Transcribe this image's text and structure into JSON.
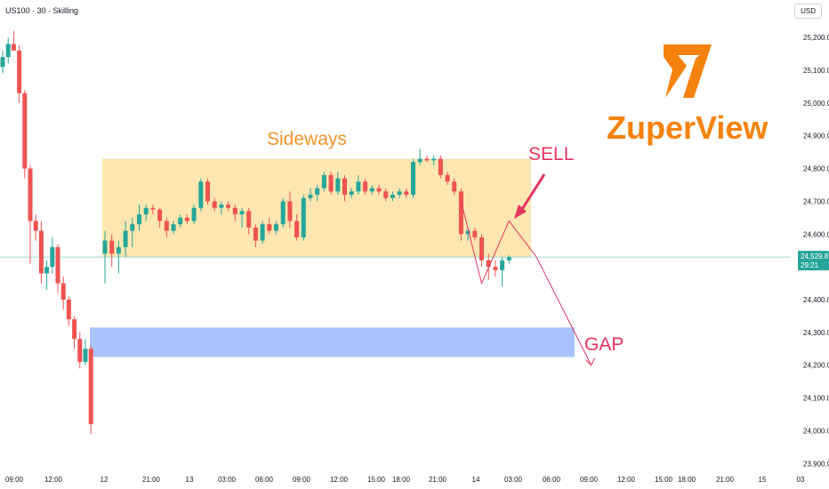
{
  "header": {
    "symbol": "US100 · 30 · Skilling",
    "currency": "USD"
  },
  "price_tag": {
    "price": "24,529.8",
    "countdown": "29:21"
  },
  "annotations": {
    "sideways": "Sideways",
    "sell": "SELL",
    "gap": "GAP"
  },
  "logo": {
    "text": "ZuperView"
  },
  "colors": {
    "up": "#26a69a",
    "down": "#ef5350",
    "sideways_zone": "#fde6b0",
    "gap_zone": "#a9c3ff",
    "accent": "#e6335f",
    "logo": "#f5820d",
    "sideways_text": "#f0942a"
  },
  "chart_data": {
    "type": "candlestick",
    "y_axis_labels": [
      "25,200.0",
      "25,100.0",
      "25,000.0",
      "24,900.0",
      "24,800.0",
      "24,700.0",
      "24,600.0",
      "24,400.0",
      "24,300.0",
      "24,200.0",
      "24,100.0",
      "24,000.0",
      "23,900.0"
    ],
    "y_axis_values": [
      25200,
      25100,
      25000,
      24900,
      24800,
      24700,
      24600,
      24400,
      24300,
      24200,
      24100,
      24000,
      23900
    ],
    "x_axis_labels": [
      "09:00",
      "12:00",
      "12",
      "21:00",
      "13",
      "03:00",
      "06:00",
      "09:00",
      "12:00",
      "15:00",
      "18:00",
      "21:00",
      "14",
      "03:00",
      "06:00",
      "09:00",
      "12:00",
      "15:00",
      "18:00",
      "21:00",
      "15",
      "03"
    ],
    "ylim": [
      23890,
      25260
    ],
    "last_price": 24529.8,
    "sideways_range": [
      24530,
      24830
    ],
    "gap_range": [
      24225,
      24315
    ],
    "candles": [
      {
        "o": 25110,
        "h": 25160,
        "l": 25090,
        "c": 25140
      },
      {
        "o": 25140,
        "h": 25200,
        "l": 25120,
        "c": 25180
      },
      {
        "o": 25180,
        "h": 25220,
        "l": 25160,
        "c": 25160
      },
      {
        "o": 25160,
        "h": 25175,
        "l": 25000,
        "c": 25030
      },
      {
        "o": 25030,
        "h": 25040,
        "l": 24770,
        "c": 24800
      },
      {
        "o": 24800,
        "h": 24810,
        "l": 24510,
        "c": 24640
      },
      {
        "o": 24640,
        "h": 24660,
        "l": 24580,
        "c": 24610
      },
      {
        "o": 24610,
        "h": 24640,
        "l": 24450,
        "c": 24480
      },
      {
        "o": 24480,
        "h": 24520,
        "l": 24430,
        "c": 24500
      },
      {
        "o": 24500,
        "h": 24590,
        "l": 24480,
        "c": 24560
      },
      {
        "o": 24560,
        "h": 24570,
        "l": 24420,
        "c": 24450
      },
      {
        "o": 24450,
        "h": 24470,
        "l": 24370,
        "c": 24400
      },
      {
        "o": 24400,
        "h": 24410,
        "l": 24320,
        "c": 24340
      },
      {
        "o": 24340,
        "h": 24350,
        "l": 24250,
        "c": 24280
      },
      {
        "o": 24280,
        "h": 24300,
        "l": 24190,
        "c": 24210
      },
      {
        "o": 24210,
        "h": 24280,
        "l": 24200,
        "c": 24250
      },
      {
        "o": 24250,
        "h": 24260,
        "l": 23990,
        "c": 24020
      },
      {
        "o": 24540,
        "h": 24610,
        "l": 24450,
        "c": 24580
      },
      {
        "o": 24580,
        "h": 24600,
        "l": 24500,
        "c": 24540
      },
      {
        "o": 24540,
        "h": 24580,
        "l": 24480,
        "c": 24560
      },
      {
        "o": 24560,
        "h": 24640,
        "l": 24530,
        "c": 24610
      },
      {
        "o": 24610,
        "h": 24650,
        "l": 24560,
        "c": 24630
      },
      {
        "o": 24630,
        "h": 24690,
        "l": 24610,
        "c": 24660
      },
      {
        "o": 24660,
        "h": 24690,
        "l": 24640,
        "c": 24680
      },
      {
        "o": 24680,
        "h": 24690,
        "l": 24660,
        "c": 24675
      },
      {
        "o": 24675,
        "h": 24680,
        "l": 24620,
        "c": 24640
      },
      {
        "o": 24640,
        "h": 24650,
        "l": 24590,
        "c": 24610
      },
      {
        "o": 24610,
        "h": 24640,
        "l": 24600,
        "c": 24630
      },
      {
        "o": 24630,
        "h": 24660,
        "l": 24620,
        "c": 24650
      },
      {
        "o": 24650,
        "h": 24660,
        "l": 24630,
        "c": 24640
      },
      {
        "o": 24640,
        "h": 24690,
        "l": 24630,
        "c": 24680
      },
      {
        "o": 24680,
        "h": 24770,
        "l": 24670,
        "c": 24760
      },
      {
        "o": 24760,
        "h": 24770,
        "l": 24690,
        "c": 24700
      },
      {
        "o": 24700,
        "h": 24710,
        "l": 24670,
        "c": 24680
      },
      {
        "o": 24680,
        "h": 24700,
        "l": 24660,
        "c": 24690
      },
      {
        "o": 24690,
        "h": 24700,
        "l": 24670,
        "c": 24680
      },
      {
        "o": 24680,
        "h": 24690,
        "l": 24640,
        "c": 24660
      },
      {
        "o": 24660,
        "h": 24680,
        "l": 24620,
        "c": 24670
      },
      {
        "o": 24670,
        "h": 24680,
        "l": 24600,
        "c": 24620
      },
      {
        "o": 24620,
        "h": 24630,
        "l": 24560,
        "c": 24580
      },
      {
        "o": 24580,
        "h": 24640,
        "l": 24570,
        "c": 24630
      },
      {
        "o": 24630,
        "h": 24650,
        "l": 24600,
        "c": 24610
      },
      {
        "o": 24610,
        "h": 24640,
        "l": 24600,
        "c": 24630
      },
      {
        "o": 24630,
        "h": 24710,
        "l": 24620,
        "c": 24700
      },
      {
        "o": 24700,
        "h": 24730,
        "l": 24620,
        "c": 24640
      },
      {
        "o": 24640,
        "h": 24660,
        "l": 24580,
        "c": 24590
      },
      {
        "o": 24590,
        "h": 24720,
        "l": 24580,
        "c": 24710
      },
      {
        "o": 24710,
        "h": 24740,
        "l": 24700,
        "c": 24720
      },
      {
        "o": 24720,
        "h": 24750,
        "l": 24700,
        "c": 24740
      },
      {
        "o": 24740,
        "h": 24790,
        "l": 24730,
        "c": 24780
      },
      {
        "o": 24780,
        "h": 24790,
        "l": 24720,
        "c": 24730
      },
      {
        "o": 24730,
        "h": 24790,
        "l": 24720,
        "c": 24770
      },
      {
        "o": 24770,
        "h": 24780,
        "l": 24700,
        "c": 24720
      },
      {
        "o": 24720,
        "h": 24740,
        "l": 24710,
        "c": 24730
      },
      {
        "o": 24730,
        "h": 24780,
        "l": 24720,
        "c": 24760
      },
      {
        "o": 24760,
        "h": 24770,
        "l": 24720,
        "c": 24730
      },
      {
        "o": 24730,
        "h": 24750,
        "l": 24720,
        "c": 24740
      },
      {
        "o": 24740,
        "h": 24750,
        "l": 24720,
        "c": 24730
      },
      {
        "o": 24730,
        "h": 24740,
        "l": 24700,
        "c": 24710
      },
      {
        "o": 24710,
        "h": 24730,
        "l": 24700,
        "c": 24720
      },
      {
        "o": 24720,
        "h": 24740,
        "l": 24710,
        "c": 24730
      },
      {
        "o": 24730,
        "h": 24740,
        "l": 24710,
        "c": 24720
      },
      {
        "o": 24720,
        "h": 24830,
        "l": 24710,
        "c": 24820
      },
      {
        "o": 24820,
        "h": 24860,
        "l": 24810,
        "c": 24830
      },
      {
        "o": 24830,
        "h": 24840,
        "l": 24820,
        "c": 24825
      },
      {
        "o": 24825,
        "h": 24840,
        "l": 24810,
        "c": 24830
      },
      {
        "o": 24830,
        "h": 24840,
        "l": 24770,
        "c": 24780
      },
      {
        "o": 24780,
        "h": 24790,
        "l": 24750,
        "c": 24760
      },
      {
        "o": 24760,
        "h": 24770,
        "l": 24720,
        "c": 24730
      },
      {
        "o": 24730,
        "h": 24740,
        "l": 24580,
        "c": 24600
      },
      {
        "o": 24600,
        "h": 24620,
        "l": 24580,
        "c": 24610
      },
      {
        "o": 24610,
        "h": 24620,
        "l": 24580,
        "c": 24590
      },
      {
        "o": 24590,
        "h": 24600,
        "l": 24500,
        "c": 24520
      },
      {
        "o": 24520,
        "h": 24540,
        "l": 24460,
        "c": 24500
      },
      {
        "o": 24500,
        "h": 24520,
        "l": 24470,
        "c": 24490
      },
      {
        "o": 24490,
        "h": 24530,
        "l": 24440,
        "c": 24520
      },
      {
        "o": 24520,
        "h": 24535,
        "l": 24510,
        "c": 24530
      }
    ],
    "candle_slots": [
      0,
      1,
      2,
      3,
      4,
      5,
      6,
      7,
      8,
      9,
      10,
      11,
      12,
      13,
      14,
      15,
      16,
      17,
      18,
      19,
      20,
      21,
      22,
      23,
      24,
      25,
      26,
      27,
      28,
      29,
      30,
      31,
      32,
      33,
      34,
      35,
      36,
      37,
      38,
      39,
      40,
      41,
      42,
      43,
      44,
      45,
      46,
      47,
      48,
      49,
      50,
      51,
      52,
      53,
      54,
      55,
      56,
      57,
      58,
      59,
      60,
      61,
      62,
      63,
      64,
      65,
      66,
      67,
      68,
      69,
      70,
      71,
      72,
      73,
      74,
      75,
      76
    ],
    "projection_path": [
      {
        "slot": 69,
        "price": 24700
      },
      {
        "slot": 72,
        "price": 24450
      },
      {
        "slot": 76,
        "price": 24640
      },
      {
        "slot": 80,
        "price": 24530
      },
      {
        "slot": 88,
        "price": 24200
      }
    ]
  }
}
